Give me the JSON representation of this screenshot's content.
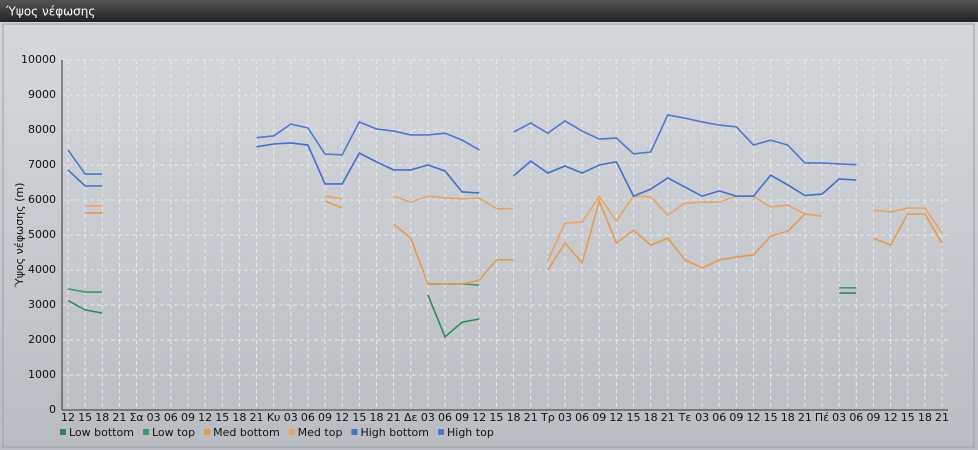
{
  "chart_data": {
    "type": "line",
    "title": "Ύψος νέφωσης",
    "y_label": "Ύψος νέφωσης (m)",
    "categories": [
      "12",
      "15",
      "18",
      "21",
      "Σα",
      "03",
      "06",
      "09",
      "12",
      "15",
      "18",
      "21",
      "Κυ",
      "03",
      "06",
      "09",
      "12",
      "15",
      "18",
      "21",
      "Δε",
      "03",
      "06",
      "09",
      "12",
      "15",
      "18",
      "21",
      "Τρ",
      "03",
      "06",
      "09",
      "12",
      "15",
      "18",
      "21",
      "Τε",
      "03",
      "06",
      "09",
      "12",
      "15",
      "18",
      "21",
      "Πέ",
      "03",
      "06",
      "09",
      "12",
      "15",
      "18",
      "21"
    ],
    "ylim": [
      0,
      10000
    ],
    "yticks": [
      0,
      1000,
      2000,
      3000,
      4000,
      5000,
      6000,
      7000,
      8000,
      9000,
      10000
    ],
    "grid": true,
    "legend": "bottom",
    "series": [
      {
        "name": "Low bottom",
        "color": "#2e8b57",
        "values": [
          3130,
          2860,
          2770,
          null,
          null,
          null,
          null,
          null,
          null,
          null,
          null,
          null,
          null,
          null,
          null,
          null,
          null,
          null,
          null,
          null,
          null,
          3290,
          2090,
          2510,
          2600,
          null,
          null,
          null,
          null,
          null,
          null,
          null,
          null,
          null,
          null,
          null,
          null,
          null,
          null,
          null,
          null,
          null,
          null,
          null,
          null,
          3340,
          3340,
          null,
          null,
          null,
          null,
          null
        ]
      },
      {
        "name": "Low top",
        "color": "#3a9a68",
        "values": [
          3460,
          3370,
          3370,
          null,
          null,
          null,
          null,
          null,
          null,
          null,
          null,
          null,
          null,
          null,
          null,
          null,
          null,
          null,
          null,
          null,
          null,
          3600,
          3600,
          3600,
          3570,
          null,
          null,
          null,
          null,
          null,
          null,
          null,
          null,
          null,
          null,
          null,
          null,
          null,
          null,
          null,
          null,
          null,
          null,
          null,
          null,
          3490,
          3490,
          null,
          null,
          null,
          null,
          null
        ]
      },
      {
        "name": "Med bottom",
        "color": "#e89a4a",
        "values": [
          null,
          5630,
          5630,
          null,
          null,
          null,
          null,
          null,
          null,
          null,
          null,
          null,
          null,
          null,
          null,
          5970,
          5770,
          null,
          null,
          5310,
          4910,
          3600,
          3600,
          3600,
          3710,
          4290,
          4290,
          null,
          4000,
          4770,
          4200,
          5970,
          4770,
          5140,
          4710,
          4910,
          4290,
          4060,
          4290,
          4370,
          4430,
          4970,
          5110,
          5600,
          5540,
          null,
          null,
          4910,
          4710,
          5600,
          5600,
          4770
        ]
      },
      {
        "name": "Med top",
        "color": "#eaa55a",
        "values": [
          null,
          5830,
          5830,
          null,
          null,
          null,
          null,
          null,
          null,
          null,
          null,
          null,
          null,
          null,
          null,
          6110,
          6030,
          null,
          null,
          6110,
          5940,
          6110,
          6060,
          6030,
          6060,
          5750,
          5750,
          null,
          4260,
          5340,
          5370,
          6110,
          5400,
          6110,
          6090,
          5570,
          5910,
          5940,
          5940,
          6110,
          6110,
          5800,
          5860,
          5600,
          5540,
          null,
          null,
          5710,
          5660,
          5770,
          5770,
          5060
        ]
      },
      {
        "name": "High bottom",
        "color": "#3f6fd0",
        "values": [
          6860,
          6400,
          6400,
          null,
          null,
          null,
          null,
          null,
          null,
          null,
          null,
          7520,
          7600,
          7630,
          7570,
          6460,
          6460,
          7340,
          7090,
          6860,
          6860,
          7000,
          6830,
          6230,
          6200,
          null,
          6690,
          7110,
          6770,
          6970,
          6770,
          7000,
          7090,
          6110,
          6310,
          6630,
          6370,
          6110,
          6260,
          6110,
          6110,
          6710,
          6430,
          6130,
          6170,
          6600,
          6570,
          null,
          null,
          null,
          null,
          null
        ]
      },
      {
        "name": "High top",
        "color": "#4a78d4",
        "values": [
          7430,
          6740,
          6740,
          null,
          null,
          null,
          null,
          null,
          null,
          null,
          null,
          7780,
          7830,
          8170,
          8060,
          7310,
          7290,
          8230,
          8030,
          7970,
          7860,
          7860,
          7910,
          7710,
          7430,
          null,
          7940,
          8200,
          7910,
          8260,
          7970,
          7740,
          7770,
          7320,
          7370,
          8430,
          8340,
          8230,
          8140,
          8090,
          7570,
          7710,
          7570,
          7060,
          7060,
          7030,
          7010,
          null,
          null,
          null,
          null,
          null
        ]
      }
    ]
  }
}
